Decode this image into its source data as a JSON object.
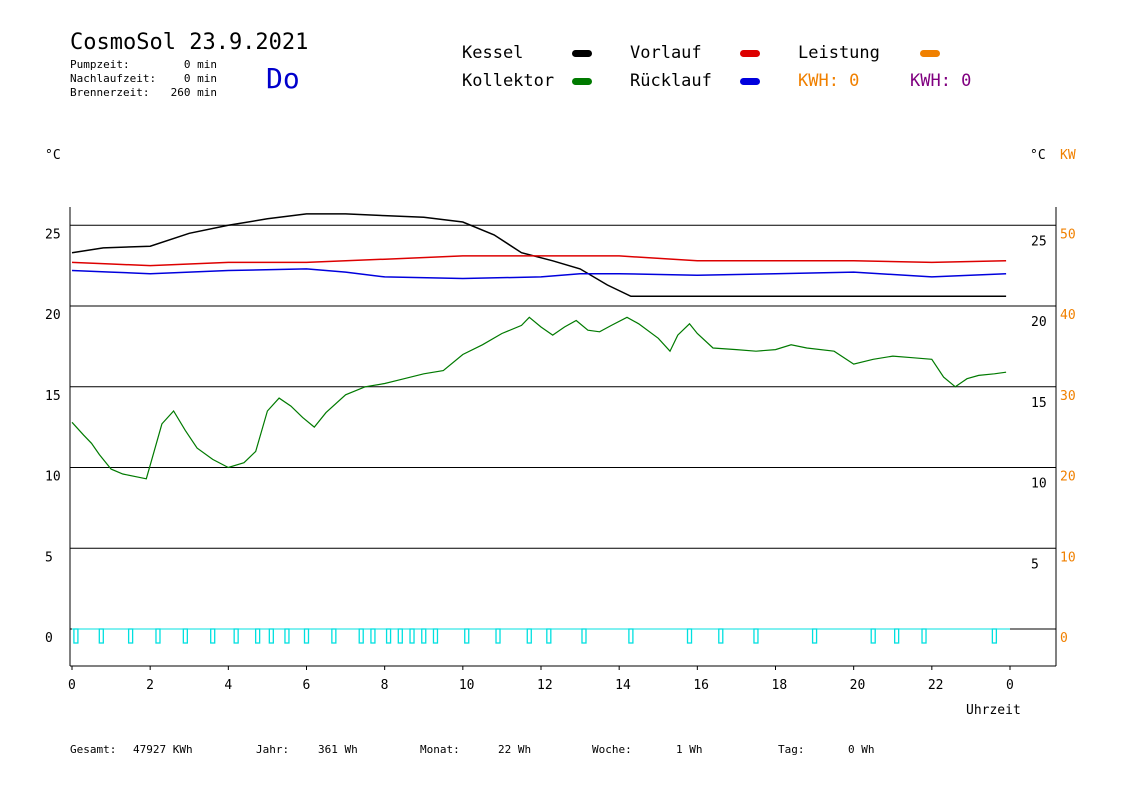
{
  "header": {
    "title": "CosmoSol 23.9.2021",
    "pumpzeit_label": "Pumpzeit:",
    "pumpzeit_value": "0 min",
    "nachlaufzeit_label": "Nachlaufzeit:",
    "nachlaufzeit_value": "0 min",
    "brennerzeit_label": "Brennerzeit:",
    "brennerzeit_value": "260 min",
    "day": "Do"
  },
  "legend": {
    "kessel": "Kessel",
    "kollektor": "Kollektor",
    "vorlauf": "Vorlauf",
    "ruecklauf": "Rücklauf",
    "leistung": "Leistung",
    "kwh1": "KWH: 0",
    "kwh2": "KWH: 0"
  },
  "colors": {
    "kessel": "#000000",
    "kollektor": "#007a00",
    "vorlauf": "#dd0000",
    "ruecklauf": "#0000dd",
    "leistung": "#f08000",
    "kwh2": "#800080",
    "pump": "#00e0e0"
  },
  "axis_units": {
    "left": "°C",
    "right_c": "°C",
    "right_kw": "KW"
  },
  "footer": {
    "gesamt_label": "Gesamt:",
    "gesamt_value": "47927 KWh",
    "jahr_label": "Jahr:",
    "jahr_value": "361 Wh",
    "monat_label": "Monat:",
    "monat_value": "22 Wh",
    "woche_label": "Woche:",
    "woche_value": "1 Wh",
    "tag_label": "Tag:",
    "tag_value": "0 Wh"
  },
  "chart_data": {
    "type": "line",
    "xlabel": "Uhrzeit",
    "x_ticks": [
      "0",
      "2",
      "4",
      "6",
      "8",
      "10",
      "12",
      "14",
      "16",
      "18",
      "20",
      "22",
      "0"
    ],
    "xlim": [
      0,
      24
    ],
    "ylim": [
      -2,
      27
    ],
    "y_gridlines": [
      0,
      5,
      10,
      15,
      20,
      25
    ],
    "y_ticks_left": [
      "0",
      "5",
      "10",
      "15",
      "20",
      "25"
    ],
    "y_ticks_right_c": [
      "5",
      "10",
      "15",
      "20",
      "25"
    ],
    "y_ticks_right_kw": [
      "0",
      "10",
      "20",
      "30",
      "40",
      "50"
    ],
    "series": [
      {
        "name": "Kessel",
        "color": "#000000",
        "points": [
          [
            0,
            23.3
          ],
          [
            0.8,
            23.6
          ],
          [
            2,
            23.7
          ],
          [
            3,
            24.5
          ],
          [
            4,
            25
          ],
          [
            5,
            25.4
          ],
          [
            6,
            25.7
          ],
          [
            7,
            25.7
          ],
          [
            8,
            25.6
          ],
          [
            9,
            25.5
          ],
          [
            10,
            25.2
          ],
          [
            10.8,
            24.4
          ],
          [
            11.5,
            23.3
          ],
          [
            12.3,
            22.8
          ],
          [
            13,
            22.3
          ],
          [
            13.7,
            21.3
          ],
          [
            14.3,
            20.6
          ],
          [
            16,
            20.6
          ],
          [
            18,
            20.6
          ],
          [
            20,
            20.6
          ],
          [
            22,
            20.6
          ],
          [
            23.9,
            20.6
          ]
        ]
      },
      {
        "name": "Kollektor",
        "color": "#007a00",
        "points": [
          [
            0,
            12.8
          ],
          [
            0.3,
            12
          ],
          [
            0.5,
            11.5
          ],
          [
            0.7,
            10.8
          ],
          [
            1,
            9.9
          ],
          [
            1.3,
            9.6
          ],
          [
            1.7,
            9.4
          ],
          [
            1.9,
            9.3
          ],
          [
            2.1,
            11
          ],
          [
            2.3,
            12.7
          ],
          [
            2.6,
            13.5
          ],
          [
            2.9,
            12.3
          ],
          [
            3.2,
            11.2
          ],
          [
            3.6,
            10.5
          ],
          [
            4,
            10
          ],
          [
            4.4,
            10.3
          ],
          [
            4.7,
            11
          ],
          [
            5,
            13.5
          ],
          [
            5.3,
            14.3
          ],
          [
            5.6,
            13.8
          ],
          [
            5.9,
            13.1
          ],
          [
            6.2,
            12.5
          ],
          [
            6.5,
            13.4
          ],
          [
            7,
            14.5
          ],
          [
            7.5,
            15
          ],
          [
            8,
            15.2
          ],
          [
            8.5,
            15.5
          ],
          [
            9,
            15.8
          ],
          [
            9.5,
            16
          ],
          [
            10,
            17
          ],
          [
            10.5,
            17.6
          ],
          [
            11,
            18.3
          ],
          [
            11.5,
            18.8
          ],
          [
            11.7,
            19.3
          ],
          [
            12,
            18.7
          ],
          [
            12.3,
            18.2
          ],
          [
            12.6,
            18.7
          ],
          [
            12.9,
            19.1
          ],
          [
            13.2,
            18.5
          ],
          [
            13.5,
            18.4
          ],
          [
            13.8,
            18.8
          ],
          [
            14.2,
            19.3
          ],
          [
            14.5,
            18.9
          ],
          [
            15,
            18
          ],
          [
            15.3,
            17.2
          ],
          [
            15.5,
            18.2
          ],
          [
            15.8,
            18.9
          ],
          [
            16,
            18.3
          ],
          [
            16.4,
            17.4
          ],
          [
            17,
            17.3
          ],
          [
            17.5,
            17.2
          ],
          [
            18,
            17.3
          ],
          [
            18.4,
            17.6
          ],
          [
            18.8,
            17.4
          ],
          [
            19.5,
            17.2
          ],
          [
            20,
            16.4
          ],
          [
            20.5,
            16.7
          ],
          [
            21,
            16.9
          ],
          [
            21.5,
            16.8
          ],
          [
            22,
            16.7
          ],
          [
            22.3,
            15.6
          ],
          [
            22.6,
            15
          ],
          [
            22.9,
            15.5
          ],
          [
            23.2,
            15.7
          ],
          [
            23.6,
            15.8
          ],
          [
            23.9,
            15.9
          ]
        ]
      },
      {
        "name": "Vorlauf",
        "color": "#dd0000",
        "points": [
          [
            0,
            22.7
          ],
          [
            1,
            22.6
          ],
          [
            2,
            22.5
          ],
          [
            4,
            22.7
          ],
          [
            6,
            22.7
          ],
          [
            8,
            22.9
          ],
          [
            10,
            23.1
          ],
          [
            12,
            23.1
          ],
          [
            14,
            23.1
          ],
          [
            16,
            22.8
          ],
          [
            18,
            22.8
          ],
          [
            20,
            22.8
          ],
          [
            22,
            22.7
          ],
          [
            23.9,
            22.8
          ]
        ]
      },
      {
        "name": "Rücklauf",
        "color": "#0000dd",
        "points": [
          [
            0,
            22.2
          ],
          [
            1,
            22.1
          ],
          [
            2,
            22
          ],
          [
            4,
            22.2
          ],
          [
            6,
            22.3
          ],
          [
            7,
            22.1
          ],
          [
            8,
            21.8
          ],
          [
            10,
            21.7
          ],
          [
            12,
            21.8
          ],
          [
            13,
            22
          ],
          [
            14,
            22
          ],
          [
            16,
            21.9
          ],
          [
            18,
            22
          ],
          [
            20,
            22.1
          ],
          [
            22,
            21.8
          ],
          [
            23.9,
            22
          ]
        ]
      }
    ],
    "pump_pulses": [
      0.1,
      0.75,
      1.5,
      2.2,
      2.9,
      3.6,
      4.2,
      4.75,
      5.1,
      5.5,
      6.0,
      6.7,
      7.4,
      7.7,
      8.1,
      8.4,
      8.7,
      9.0,
      9.3,
      10.1,
      10.9,
      11.7,
      12.2,
      13.1,
      14.3,
      15.8,
      16.6,
      17.5,
      19,
      20.5,
      21.1,
      21.8,
      23.6
    ]
  }
}
